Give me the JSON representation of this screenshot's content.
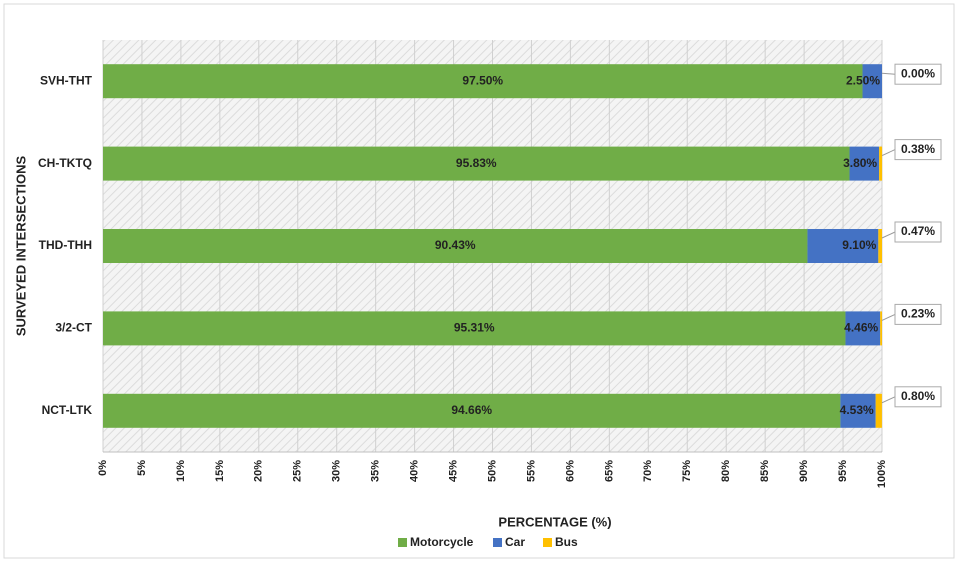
{
  "chart_data": {
    "type": "stacked-bar-horizontal",
    "categories": [
      "SVH-THT",
      "CH-TKTQ",
      "THD-THH",
      "3/2-CT",
      "NCT-LTK"
    ],
    "series": [
      {
        "name": "Motorcycle",
        "color": "#70ad47",
        "values": [
          97.5,
          95.83,
          90.43,
          95.31,
          94.66
        ],
        "value_labels": [
          "97.50%",
          "95.83%",
          "90.43%",
          "95.31%",
          "94.66%"
        ]
      },
      {
        "name": "Car",
        "color": "#4472c4",
        "values": [
          2.5,
          3.8,
          9.1,
          4.46,
          4.53
        ],
        "value_labels": [
          "2.50%",
          "3.80%",
          "9.10%",
          "4.46%",
          "4.53%"
        ]
      },
      {
        "name": "Bus",
        "color": "#ffc000",
        "values": [
          0,
          0.38,
          0.47,
          0.23,
          0.8
        ],
        "value_labels": [
          "0.00%",
          "0.38%",
          "0.47%",
          "0.23%",
          "0.80%"
        ]
      }
    ],
    "xlabel": "PERCENTAGE (%)",
    "ylabel": "SURVEYED INTERSECTIONS",
    "xlim": [
      0,
      100
    ],
    "xticks": [
      {
        "value": 0,
        "label": "0%"
      },
      {
        "value": 5,
        "label": "5%"
      },
      {
        "value": 10,
        "label": "10%"
      },
      {
        "value": 15,
        "label": "15%"
      },
      {
        "value": 20,
        "label": "20%"
      },
      {
        "value": 25,
        "label": "25%"
      },
      {
        "value": 30,
        "label": "30%"
      },
      {
        "value": 35,
        "label": "35%"
      },
      {
        "value": 40,
        "label": "40%"
      },
      {
        "value": 45,
        "label": "45%"
      },
      {
        "value": 50,
        "label": "50%"
      },
      {
        "value": 55,
        "label": "55%"
      },
      {
        "value": 60,
        "label": "60%"
      },
      {
        "value": 65,
        "label": "65%"
      },
      {
        "value": 70,
        "label": "70%"
      },
      {
        "value": 75,
        "label": "75%"
      },
      {
        "value": 80,
        "label": "80%"
      },
      {
        "value": 85,
        "label": "85%"
      },
      {
        "value": 90,
        "label": "90%"
      },
      {
        "value": 95,
        "label": "95%"
      },
      {
        "value": 100,
        "label": "100%"
      }
    ],
    "grid": true,
    "legend": "bottom"
  }
}
